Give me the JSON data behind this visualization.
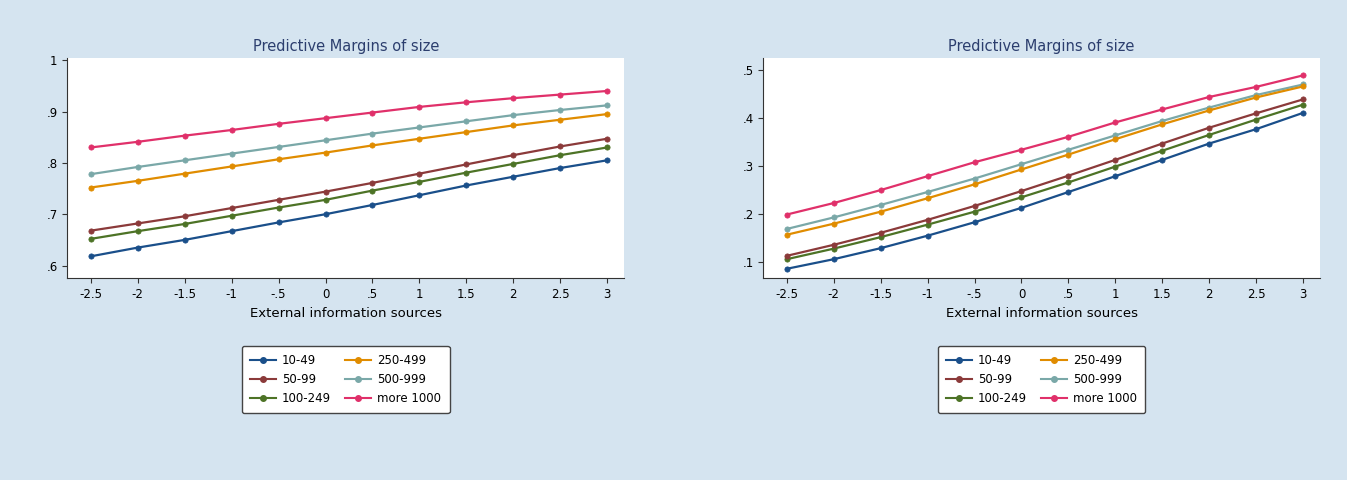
{
  "title": "Predictive Margins of size",
  "xlabel": "External information sources",
  "background_color": "#d5e4f0",
  "plot_bg_color": "#ffffff",
  "x_values": [
    -2.5,
    -2.0,
    -1.5,
    -1.0,
    -0.5,
    0.0,
    0.5,
    1.0,
    1.5,
    2.0,
    2.5,
    3.0
  ],
  "x_ticks": [
    -2.5,
    -2.0,
    -1.5,
    -1.0,
    -0.5,
    0.0,
    0.5,
    1.0,
    1.5,
    2.0,
    2.5,
    3.0
  ],
  "x_tick_labels": [
    "-2.5",
    "-2",
    "-1.5",
    "-1",
    "-.5",
    "0",
    ".5",
    "1",
    "1.5",
    "2",
    "2.5",
    "3"
  ],
  "series": [
    {
      "label": "10-49",
      "color": "#1a4f8a",
      "lw": 1.6
    },
    {
      "label": "100-249",
      "color": "#4d7326",
      "lw": 1.6
    },
    {
      "label": "500-999",
      "color": "#7aa8a8",
      "lw": 1.6
    },
    {
      "label": "50-99",
      "color": "#8b3a3a",
      "lw": 1.6
    },
    {
      "label": "250-499",
      "color": "#e08c00",
      "lw": 1.6
    },
    {
      "label": "more 1000",
      "color": "#e0306a",
      "lw": 1.6
    }
  ],
  "chart1": {
    "ylim": [
      0.575,
      1.005
    ],
    "yticks": [
      0.6,
      0.7,
      0.8,
      0.9,
      1.0
    ],
    "ytick_labels": [
      ".6",
      ".7",
      ".8",
      ".9",
      "1"
    ],
    "series_data": [
      [
        0.618,
        0.635,
        0.65,
        0.667,
        0.684,
        0.7,
        0.718,
        0.737,
        0.756,
        0.773,
        0.79,
        0.805
      ],
      [
        0.652,
        0.667,
        0.681,
        0.697,
        0.713,
        0.728,
        0.746,
        0.763,
        0.781,
        0.798,
        0.815,
        0.83
      ],
      [
        0.778,
        0.792,
        0.805,
        0.818,
        0.831,
        0.844,
        0.857,
        0.869,
        0.881,
        0.893,
        0.903,
        0.912
      ],
      [
        0.668,
        0.682,
        0.696,
        0.712,
        0.728,
        0.744,
        0.761,
        0.779,
        0.797,
        0.815,
        0.832,
        0.847
      ],
      [
        0.752,
        0.765,
        0.779,
        0.793,
        0.807,
        0.82,
        0.834,
        0.847,
        0.86,
        0.873,
        0.884,
        0.895
      ],
      [
        0.83,
        0.841,
        0.853,
        0.864,
        0.876,
        0.887,
        0.898,
        0.909,
        0.918,
        0.926,
        0.933,
        0.94
      ]
    ]
  },
  "chart2": {
    "ylim": [
      0.065,
      0.525
    ],
    "yticks": [
      0.1,
      0.2,
      0.3,
      0.4,
      0.5
    ],
    "ytick_labels": [
      ".1",
      ".2",
      ".3",
      ".4",
      ".5"
    ],
    "series_data": [
      [
        0.085,
        0.105,
        0.128,
        0.154,
        0.182,
        0.212,
        0.245,
        0.278,
        0.312,
        0.346,
        0.376,
        0.41
      ],
      [
        0.105,
        0.127,
        0.151,
        0.177,
        0.204,
        0.234,
        0.265,
        0.298,
        0.331,
        0.364,
        0.396,
        0.427
      ],
      [
        0.168,
        0.192,
        0.218,
        0.245,
        0.273,
        0.303,
        0.333,
        0.363,
        0.393,
        0.421,
        0.447,
        0.469
      ],
      [
        0.112,
        0.135,
        0.16,
        0.187,
        0.216,
        0.247,
        0.279,
        0.312,
        0.346,
        0.379,
        0.409,
        0.438
      ],
      [
        0.156,
        0.179,
        0.204,
        0.232,
        0.261,
        0.292,
        0.323,
        0.355,
        0.386,
        0.415,
        0.442,
        0.465
      ],
      [
        0.198,
        0.222,
        0.249,
        0.278,
        0.307,
        0.333,
        0.36,
        0.39,
        0.417,
        0.443,
        0.464,
        0.488
      ]
    ]
  }
}
